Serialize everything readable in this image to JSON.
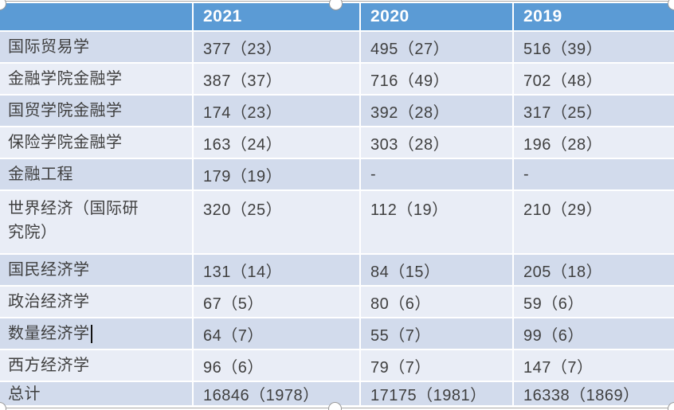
{
  "table": {
    "columns": [
      "",
      "2021",
      "2020",
      "2019"
    ],
    "rows": [
      {
        "cells": [
          "国际贸易学",
          "377（23）",
          "495（27）",
          "516（39）"
        ]
      },
      {
        "cells": [
          "金融学院金融学",
          "387（37）",
          "716（49）",
          "702（48）"
        ]
      },
      {
        "cells": [
          "国贸学院金融学",
          "174（23）",
          "392（28）",
          "317（25）"
        ]
      },
      {
        "cells": [
          "保险学院金融学",
          "163（24）",
          "303（28）",
          "196（28）"
        ]
      },
      {
        "cells": [
          "金融工程",
          "179（19）",
          "-",
          "-"
        ]
      },
      {
        "cells": [
          "世界经济（国际研究院）",
          "320（25）",
          "112（19）",
          "210（29）"
        ]
      },
      {
        "cells": [
          "国民经济学",
          "131（14）",
          "84（15）",
          "205（18）"
        ]
      },
      {
        "cells": [
          "政治经济学",
          "67（5）",
          "80（6）",
          "59（6）"
        ]
      },
      {
        "cells": [
          "数量经济学",
          "64（7）",
          "55（7）",
          "99（6）"
        ]
      },
      {
        "cells": [
          "西方经济学",
          "96（6）",
          "79（7）",
          "147（7）"
        ]
      },
      {
        "cells": [
          "总计",
          "16846（1978）",
          "17175（1981）",
          "16338（1869）"
        ]
      }
    ],
    "colors": {
      "header_bg": "#5b9bd5",
      "band_dark": "#d2dbec",
      "band_light": "#e9edf6",
      "header_text": "#ffffff",
      "body_text": "#3f3f3f",
      "selection_outline": "#a8a8a8"
    }
  }
}
